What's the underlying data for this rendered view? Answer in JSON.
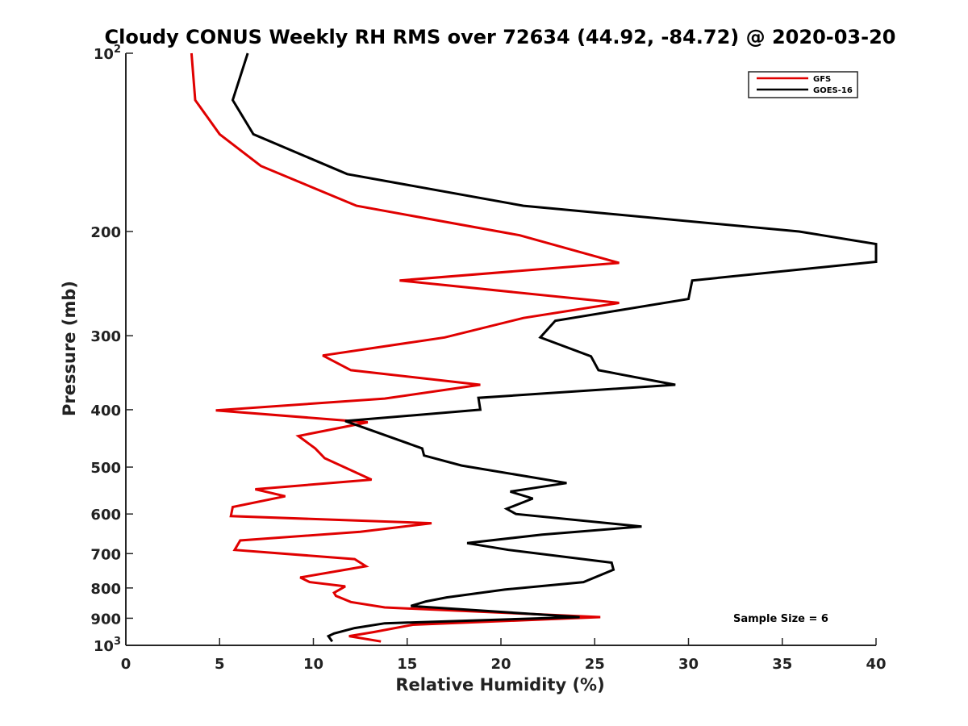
{
  "chart_data": {
    "type": "line",
    "title": "Cloudy CONUS Weekly RH RMS over 72634 (44.92, -84.72) @ 2020-03-20",
    "xlabel": "Relative Humidity (%)",
    "ylabel": "Pressure (mb)",
    "xlim": [
      0,
      40
    ],
    "ylim": [
      100,
      1000
    ],
    "y_scale": "log",
    "y_reversed": true,
    "x_ticks": [
      {
        "value": 0,
        "label": "0"
      },
      {
        "value": 5,
        "label": "5"
      },
      {
        "value": 10,
        "label": "10"
      },
      {
        "value": 15,
        "label": "15"
      },
      {
        "value": 20,
        "label": "20"
      },
      {
        "value": 25,
        "label": "25"
      },
      {
        "value": 30,
        "label": "30"
      },
      {
        "value": 35,
        "label": "35"
      },
      {
        "value": 40,
        "label": "40"
      }
    ],
    "y_ticks": [
      {
        "value": 100,
        "base": "10",
        "exp": "2"
      },
      {
        "value": 200,
        "label": "200"
      },
      {
        "value": 300,
        "label": "300"
      },
      {
        "value": 400,
        "label": "400"
      },
      {
        "value": 500,
        "label": "500"
      },
      {
        "value": 600,
        "label": "600"
      },
      {
        "value": 700,
        "label": "700"
      },
      {
        "value": 800,
        "label": "800"
      },
      {
        "value": 900,
        "label": "900"
      },
      {
        "value": 1000,
        "base": "10",
        "exp": "3"
      }
    ],
    "grid": false,
    "legend_position": "top-right",
    "series": [
      {
        "name": "GFS",
        "color": "#e00000",
        "points": [
          [
            3.5,
            100
          ],
          [
            3.7,
            120
          ],
          [
            5.0,
            137
          ],
          [
            7.2,
            155
          ],
          [
            12.3,
            181
          ],
          [
            21.0,
            203
          ],
          [
            26.3,
            226
          ],
          [
            14.6,
            242
          ],
          [
            26.3,
            264
          ],
          [
            21.2,
            280
          ],
          [
            17.0,
            302
          ],
          [
            10.5,
            324
          ],
          [
            12.0,
            343
          ],
          [
            18.9,
            363
          ],
          [
            13.8,
            383
          ],
          [
            4.8,
            401
          ],
          [
            12.9,
            420
          ],
          [
            9.2,
            443
          ],
          [
            10.1,
            465
          ],
          [
            10.6,
            483
          ],
          [
            13.1,
            525
          ],
          [
            6.9,
            545
          ],
          [
            8.5,
            560
          ],
          [
            5.7,
            584
          ],
          [
            5.6,
            605
          ],
          [
            16.3,
            622
          ],
          [
            12.5,
            643
          ],
          [
            6.1,
            665
          ],
          [
            5.8,
            690
          ],
          [
            12.2,
            715
          ],
          [
            12.8,
            735
          ],
          [
            9.3,
            768
          ],
          [
            9.8,
            782
          ],
          [
            11.7,
            795
          ],
          [
            11.1,
            815
          ],
          [
            11.2,
            825
          ],
          [
            12.0,
            845
          ],
          [
            13.8,
            863
          ],
          [
            25.3,
            896
          ],
          [
            15.3,
            923
          ],
          [
            13.2,
            950
          ],
          [
            11.9,
            965
          ],
          [
            13.6,
            985
          ]
        ]
      },
      {
        "name": "GOES-16",
        "color": "#000000",
        "points": [
          [
            6.5,
            100
          ],
          [
            5.7,
            120
          ],
          [
            6.8,
            137
          ],
          [
            11.8,
            160
          ],
          [
            21.2,
            181
          ],
          [
            35.9,
            200
          ],
          [
            40.0,
            210
          ],
          [
            40.0,
            225
          ],
          [
            30.2,
            242
          ],
          [
            30.0,
            260
          ],
          [
            22.9,
            283
          ],
          [
            22.1,
            302
          ],
          [
            24.8,
            325
          ],
          [
            25.2,
            343
          ],
          [
            29.3,
            363
          ],
          [
            18.8,
            382
          ],
          [
            18.9,
            400
          ],
          [
            11.7,
            418
          ],
          [
            15.8,
            465
          ],
          [
            15.9,
            478
          ],
          [
            17.9,
            497
          ],
          [
            23.5,
            532
          ],
          [
            20.5,
            550
          ],
          [
            21.7,
            565
          ],
          [
            20.3,
            588
          ],
          [
            20.8,
            600
          ],
          [
            27.5,
            630
          ],
          [
            22.2,
            650
          ],
          [
            18.2,
            672
          ],
          [
            20.4,
            690
          ],
          [
            25.9,
            725
          ],
          [
            26.0,
            745
          ],
          [
            24.4,
            782
          ],
          [
            20.2,
            805
          ],
          [
            17.1,
            830
          ],
          [
            16.0,
            843
          ],
          [
            15.2,
            858
          ],
          [
            24.2,
            896
          ],
          [
            13.8,
            918
          ],
          [
            12.2,
            935
          ],
          [
            11.1,
            955
          ],
          [
            10.8,
            965
          ],
          [
            11.0,
            985
          ]
        ]
      }
    ],
    "annotations": [
      {
        "text": "Sample Size = 6"
      }
    ]
  }
}
